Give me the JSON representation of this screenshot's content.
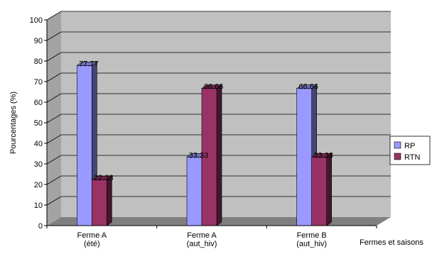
{
  "chart_data": {
    "type": "bar",
    "title": "",
    "xlabel": "Fermes et saisons",
    "ylabel": "Pourcentages (%)",
    "ylim": [
      0,
      100
    ],
    "yticks": [
      0,
      10,
      20,
      30,
      40,
      50,
      60,
      70,
      80,
      90,
      100
    ],
    "grid": true,
    "legend_position": "right",
    "categories": [
      [
        "Ferme A",
        "(été)"
      ],
      [
        "Ferme A",
        "(aut_hiv)"
      ],
      [
        "Ferme B",
        "(aut_hiv)"
      ]
    ],
    "series": [
      {
        "name": "RP",
        "values": [
          77.77,
          33.33,
          66.66
        ],
        "labels": [
          "77.77",
          "33.33",
          "66.66"
        ],
        "color": "#9999ff"
      },
      {
        "name": "RTN",
        "values": [
          22.33,
          66.66,
          33.33
        ],
        "labels": [
          "22.33",
          "66.66",
          "33.33"
        ],
        "color": "#993366"
      }
    ],
    "colors": {
      "plot_background": "#c0c0c0",
      "floor": "#808080",
      "gridline": "#000000"
    }
  }
}
